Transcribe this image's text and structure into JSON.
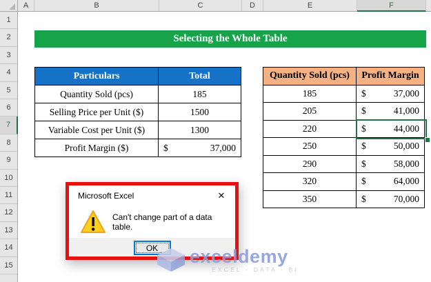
{
  "sheet": {
    "column_labels": [
      "A",
      "B",
      "C",
      "D",
      "E",
      "F"
    ],
    "selected_column": "F",
    "row_labels": [
      "1",
      "2",
      "3",
      "4",
      "5",
      "6",
      "7",
      "8",
      "9",
      "10",
      "11",
      "12",
      "13",
      "14",
      "15"
    ],
    "selected_row": "7"
  },
  "banner": {
    "title": "Selecting the Whole Table"
  },
  "input_table": {
    "headers": [
      "Particulars",
      "Total"
    ],
    "rows": [
      {
        "label": "Quantity Sold (pcs)",
        "value": "185"
      },
      {
        "label": "Selling Price per Unit ($)",
        "value": "1500"
      },
      {
        "label": "Variable Cost per Unit ($)",
        "value": "1300"
      },
      {
        "label": "Profit Margin ($)",
        "currency": "$",
        "value": "37,000"
      }
    ]
  },
  "data_table": {
    "headers": [
      "Quantity Sold (pcs)",
      "Profit Margin"
    ],
    "rows": [
      {
        "qty": "185",
        "currency": "$",
        "value": "37,000"
      },
      {
        "qty": "205",
        "currency": "$",
        "value": "41,000"
      },
      {
        "qty": "220",
        "currency": "$",
        "value": "44,000",
        "selected": true
      },
      {
        "qty": "250",
        "currency": "$",
        "value": "50,000"
      },
      {
        "qty": "290",
        "currency": "$",
        "value": "58,000"
      },
      {
        "qty": "320",
        "currency": "$",
        "value": "64,000"
      },
      {
        "qty": "350",
        "currency": "$",
        "value": "70,000"
      }
    ]
  },
  "dialog": {
    "title": "Microsoft Excel",
    "close_glyph": "✕",
    "message": "Can't change part of a data table.",
    "ok_label": "OK"
  },
  "watermark": {
    "brand": "exceldemy",
    "tagline": "EXCEL - DATA - BI"
  },
  "colors": {
    "banner_green": "#16A34A",
    "header_blue": "#1672C6",
    "header_orange": "#F4B183",
    "selection_green": "#217346",
    "alert_red": "#E81111",
    "focus_blue": "#0078D7"
  }
}
